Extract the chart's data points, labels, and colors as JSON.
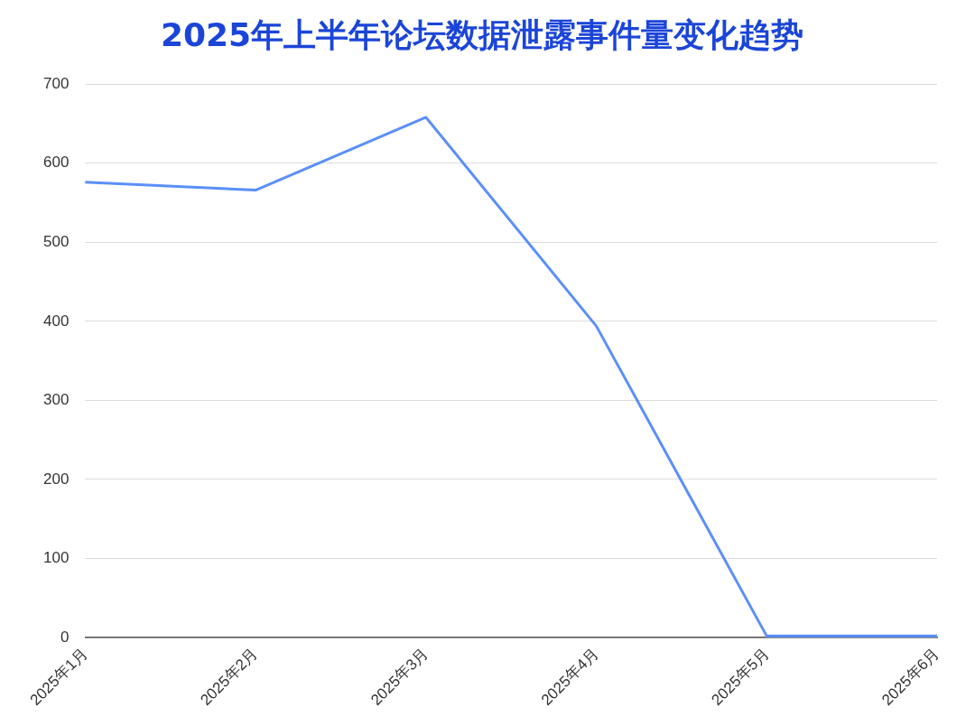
{
  "chart_data": {
    "type": "line",
    "title": "2025年上半年论坛数据泄露事件量变化趋势",
    "categories": [
      "2025年1月",
      "2025年2月",
      "2025年3月",
      "2025年4月",
      "2025年5月",
      "2025年6月"
    ],
    "series": [
      {
        "color": "#5b8ff9",
        "values": [
          576,
          566,
          658,
          394,
          2,
          2
        ]
      }
    ],
    "ylim": [
      0,
      700
    ],
    "yticks": [
      0,
      100,
      200,
      300,
      400,
      500,
      600,
      700
    ],
    "grid": "y",
    "legend": false,
    "marker": "none",
    "line_style": "solid"
  }
}
